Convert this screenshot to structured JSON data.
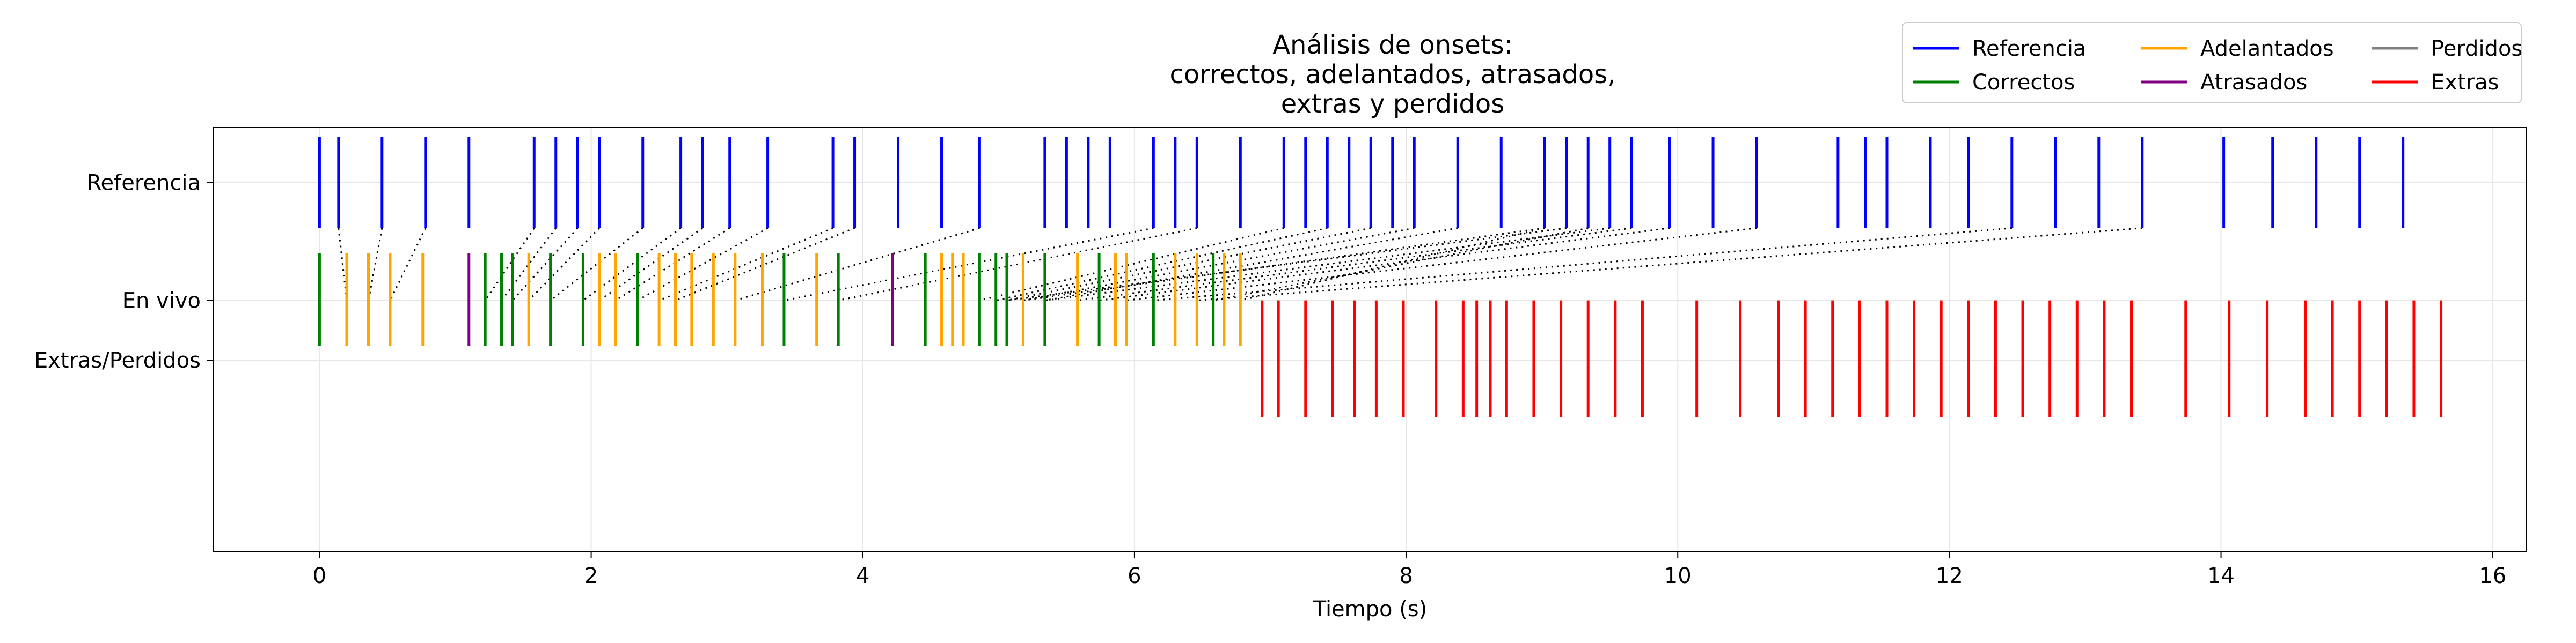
{
  "chart_data": {
    "type": "event-raster",
    "title": [
      "Análisis de onsets:",
      "correctos, adelantados, atrasados,",
      "extras y perdidos"
    ],
    "xlabel": "Tiempo (s)",
    "ylabel": "",
    "xlim": [
      -0.78,
      16.25
    ],
    "ylim": [
      -1.6,
      1.1
    ],
    "xticks": [
      0,
      2,
      4,
      6,
      8,
      10,
      12,
      14,
      16
    ],
    "rows": [
      {
        "label": "Referencia",
        "y": 0.75
      },
      {
        "label": "En vivo",
        "y": 0.0
      },
      {
        "label": "Extras/Perdidos",
        "y": -0.38
      }
    ],
    "grid": true,
    "legend": {
      "placement": "top-right",
      "columns": 3,
      "entries": [
        {
          "label": "Referencia",
          "color": "#0000ff"
        },
        {
          "label": "Correctos",
          "color": "#008000"
        },
        {
          "label": "Adelantados",
          "color": "#ffa500"
        },
        {
          "label": "Atrasados",
          "color": "#800080"
        },
        {
          "label": "Perdidos",
          "color": "#808080"
        },
        {
          "label": "Extras",
          "color": "#ff0000"
        }
      ]
    },
    "reference_onsets": [
      0.0,
      0.14,
      0.46,
      0.78,
      1.1,
      1.58,
      1.74,
      1.9,
      2.06,
      2.38,
      2.66,
      2.82,
      3.02,
      3.3,
      3.78,
      3.94,
      4.26,
      4.58,
      4.86,
      5.34,
      5.5,
      5.66,
      5.82,
      6.14,
      6.3,
      6.46,
      6.78,
      7.1,
      7.26,
      7.42,
      7.58,
      7.74,
      7.9,
      8.06,
      8.38,
      8.7,
      9.02,
      9.18,
      9.34,
      9.5,
      9.66,
      9.94,
      10.26,
      10.58,
      11.18,
      11.38,
      11.54,
      11.86,
      12.14,
      12.46,
      12.78,
      13.1,
      13.42,
      14.02,
      14.38,
      14.7,
      15.02,
      15.34
    ],
    "live_onsets": [
      {
        "t": 0.0,
        "cat": "correct"
      },
      {
        "t": 0.2,
        "cat": "early"
      },
      {
        "t": 0.36,
        "cat": "early"
      },
      {
        "t": 0.52,
        "cat": "early"
      },
      {
        "t": 0.76,
        "cat": "early"
      },
      {
        "t": 1.1,
        "cat": "late"
      },
      {
        "t": 1.22,
        "cat": "correct"
      },
      {
        "t": 1.34,
        "cat": "correct"
      },
      {
        "t": 1.42,
        "cat": "correct"
      },
      {
        "t": 1.54,
        "cat": "early"
      },
      {
        "t": 1.7,
        "cat": "correct"
      },
      {
        "t": 1.94,
        "cat": "correct"
      },
      {
        "t": 2.06,
        "cat": "early"
      },
      {
        "t": 2.18,
        "cat": "early"
      },
      {
        "t": 2.34,
        "cat": "correct"
      },
      {
        "t": 2.5,
        "cat": "early"
      },
      {
        "t": 2.62,
        "cat": "early"
      },
      {
        "t": 2.74,
        "cat": "early"
      },
      {
        "t": 2.9,
        "cat": "early"
      },
      {
        "t": 3.06,
        "cat": "early"
      },
      {
        "t": 3.26,
        "cat": "early"
      },
      {
        "t": 3.42,
        "cat": "correct"
      },
      {
        "t": 3.66,
        "cat": "early"
      },
      {
        "t": 3.82,
        "cat": "correct"
      },
      {
        "t": 4.22,
        "cat": "late"
      },
      {
        "t": 4.46,
        "cat": "correct"
      },
      {
        "t": 4.58,
        "cat": "early"
      },
      {
        "t": 4.66,
        "cat": "early"
      },
      {
        "t": 4.74,
        "cat": "early"
      },
      {
        "t": 4.86,
        "cat": "correct"
      },
      {
        "t": 4.98,
        "cat": "correct"
      },
      {
        "t": 5.06,
        "cat": "correct"
      },
      {
        "t": 5.18,
        "cat": "early"
      },
      {
        "t": 5.34,
        "cat": "correct"
      },
      {
        "t": 5.58,
        "cat": "early"
      },
      {
        "t": 5.74,
        "cat": "correct"
      },
      {
        "t": 5.86,
        "cat": "early"
      },
      {
        "t": 5.94,
        "cat": "early"
      },
      {
        "t": 6.14,
        "cat": "correct"
      },
      {
        "t": 6.3,
        "cat": "early"
      },
      {
        "t": 6.46,
        "cat": "early"
      },
      {
        "t": 6.58,
        "cat": "correct"
      },
      {
        "t": 6.66,
        "cat": "early"
      },
      {
        "t": 6.78,
        "cat": "early"
      }
    ],
    "matches": [
      [
        0.14,
        0.2
      ],
      [
        0.46,
        0.36
      ],
      [
        0.78,
        0.52
      ],
      [
        1.58,
        1.22
      ],
      [
        1.74,
        1.34
      ],
      [
        1.9,
        1.42
      ],
      [
        2.06,
        1.54
      ],
      [
        2.38,
        1.7
      ],
      [
        2.66,
        1.94
      ],
      [
        2.82,
        2.06
      ],
      [
        3.02,
        2.18
      ],
      [
        3.3,
        2.34
      ],
      [
        3.78,
        2.5
      ],
      [
        3.94,
        2.62
      ],
      [
        4.86,
        3.06
      ],
      [
        6.14,
        3.42
      ],
      [
        6.46,
        3.82
      ],
      [
        7.1,
        4.86
      ],
      [
        7.42,
        4.98
      ],
      [
        7.74,
        5.06
      ],
      [
        8.06,
        5.18
      ],
      [
        8.38,
        5.34
      ],
      [
        9.02,
        5.18
      ],
      [
        9.18,
        5.06
      ],
      [
        9.5,
        5.34
      ],
      [
        9.66,
        5.58
      ],
      [
        9.94,
        5.74
      ],
      [
        10.58,
        5.94
      ],
      [
        12.46,
        6.14
      ],
      [
        13.42,
        6.46
      ],
      [
        9.02,
        6.78
      ],
      [
        9.34,
        6.58
      ]
    ],
    "extras": [
      6.94,
      7.06,
      7.26,
      7.46,
      7.62,
      7.78,
      7.98,
      8.22,
      8.42,
      8.52,
      8.62,
      8.74,
      8.94,
      9.14,
      9.34,
      9.54,
      9.74,
      10.14,
      10.46,
      10.74,
      10.94,
      11.14,
      11.34,
      11.54,
      11.74,
      11.94,
      12.14,
      12.34,
      12.54,
      12.74,
      12.94,
      13.14,
      13.34,
      13.74,
      14.06,
      14.34,
      14.62,
      14.82,
      15.02,
      15.22,
      15.42,
      15.62
    ]
  }
}
